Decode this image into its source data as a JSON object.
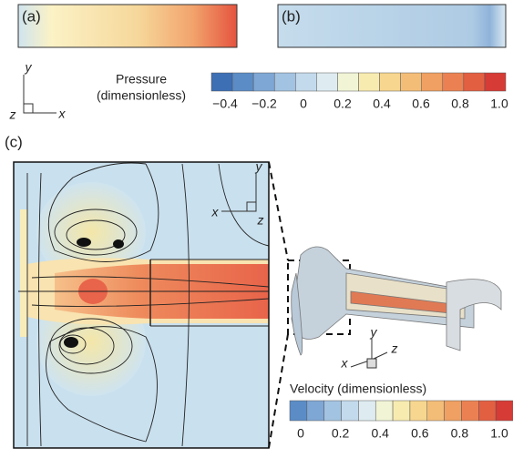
{
  "panels": {
    "a": "(a)",
    "b": "(b)",
    "c": "(c)"
  },
  "axes_top": {
    "y": "y",
    "z": "z",
    "x": "x"
  },
  "axes_c": {
    "y": "y",
    "x": "x",
    "z": "z"
  },
  "axes_3d": {
    "y": "y",
    "x": "x",
    "z": "z"
  },
  "pressure": {
    "title_line1": "Pressure",
    "title_line2": "(dimensionless)",
    "ticks": [
      "−0.4",
      "−0.2",
      "0",
      "0.2",
      "0.4",
      "0.6",
      "0.8",
      "1.0"
    ]
  },
  "velocity": {
    "title": "Velocity (dimensionless)",
    "ticks": [
      "0",
      "0.2",
      "0.4",
      "0.6",
      "0.8",
      "1.0"
    ]
  }
}
